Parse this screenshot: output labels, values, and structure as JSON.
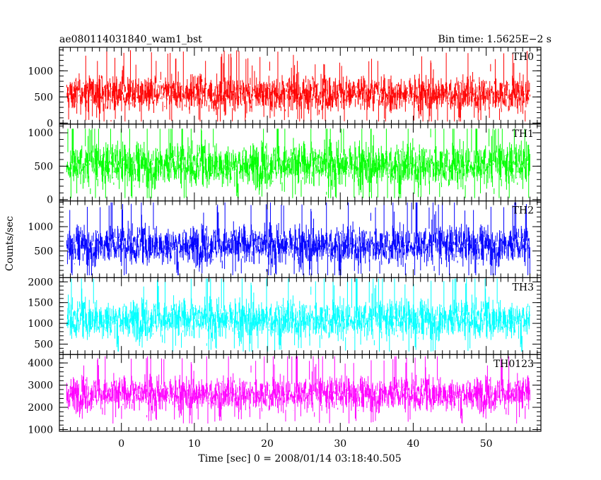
{
  "header": {
    "title": "ae080114031840_wam1_bst",
    "bin_time": "Bin time: 1.5625E−2 s"
  },
  "chart_data": {
    "type": "line",
    "title": "ae080114031840_wam1_bst",
    "xlabel": "Time [sec] 0 = 2008/01/14 03:18:40.505",
    "ylabel": "Counts/sec",
    "xlim": [
      -8.5,
      57.5
    ],
    "x_ticks": [
      0,
      10,
      20,
      30,
      40,
      50
    ],
    "data_range": [
      -7.5,
      56
    ],
    "grid": false,
    "panels": [
      {
        "name": "TH0",
        "color": "#ff0000",
        "ylim": [
          -20,
          1450
        ],
        "y_ticks": [
          0,
          500,
          1000
        ],
        "mean": 560,
        "spread": 240,
        "min": 30,
        "max": 1400
      },
      {
        "name": "TH1",
        "color": "#00ff00",
        "ylim": [
          -20,
          1130
        ],
        "y_ticks": [
          0,
          500,
          1000
        ],
        "mean": 520,
        "spread": 230,
        "min": 20,
        "max": 1060
      },
      {
        "name": "TH2",
        "color": "#0000ff",
        "ylim": [
          -50,
          1530
        ],
        "y_ticks": [
          500,
          1000
        ],
        "mean": 620,
        "spread": 280,
        "min": 0,
        "max": 1500
      },
      {
        "name": "TH3",
        "color": "#00ffff",
        "ylim": [
          250,
          2100
        ],
        "y_ticks": [
          500,
          1000,
          1500,
          2000
        ],
        "mean": 1100,
        "spread": 330,
        "min": 320,
        "max": 2080
      },
      {
        "name": "TH0123",
        "color": "#ff00ff",
        "ylim": [
          920,
          4380
        ],
        "y_ticks": [
          1000,
          2000,
          3000,
          4000
        ],
        "mean": 2600,
        "spread": 540,
        "min": 960,
        "max": 4300
      }
    ]
  }
}
